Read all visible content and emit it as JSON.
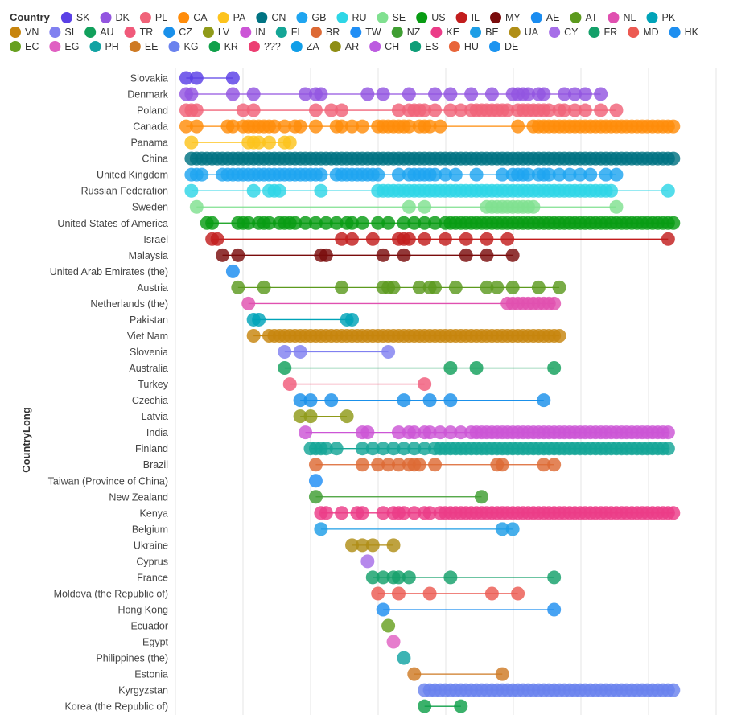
{
  "chart_data": {
    "type": "dot-range",
    "legend_title": "Country",
    "ylabel": "CountryLong",
    "xlabel": "",
    "xlim": [
      0,
      100
    ],
    "grid": true,
    "legend_position": "top",
    "legend": [
      {
        "code": "SK",
        "color": "#5a40e6"
      },
      {
        "code": "DK",
        "color": "#9355e0"
      },
      {
        "code": "PL",
        "color": "#f06379"
      },
      {
        "code": "CA",
        "color": "#ff8c0a"
      },
      {
        "code": "PA",
        "color": "#fdc31c"
      },
      {
        "code": "CN",
        "color": "#007382"
      },
      {
        "code": "GB",
        "color": "#1fa5f0"
      },
      {
        "code": "RU",
        "color": "#2ed6e6"
      },
      {
        "code": "SE",
        "color": "#80e090"
      },
      {
        "code": "US",
        "color": "#089c13"
      },
      {
        "code": "IL",
        "color": "#c21d1d"
      },
      {
        "code": "MY",
        "color": "#7a0c0c"
      },
      {
        "code": "AE",
        "color": "#1a8cf0"
      },
      {
        "code": "AT",
        "color": "#5c9a1e"
      },
      {
        "code": "NL",
        "color": "#e050b0"
      },
      {
        "code": "PK",
        "color": "#00a3b8"
      },
      {
        "code": "VN",
        "color": "#c7850e"
      },
      {
        "code": "SI",
        "color": "#8080f0"
      },
      {
        "code": "AU",
        "color": "#12a05c"
      },
      {
        "code": "TR",
        "color": "#f05a7a"
      },
      {
        "code": "CZ",
        "color": "#1a90ea"
      },
      {
        "code": "LV",
        "color": "#8f9a18"
      },
      {
        "code": "IN",
        "color": "#cc55d6"
      },
      {
        "code": "FI",
        "color": "#14a596"
      },
      {
        "code": "BR",
        "color": "#dd6a35"
      },
      {
        "code": "TW",
        "color": "#1f8ef5"
      },
      {
        "code": "NZ",
        "color": "#3f9e32"
      },
      {
        "code": "KE",
        "color": "#eb3c88"
      },
      {
        "code": "BE",
        "color": "#1e9ee6"
      },
      {
        "code": "UA",
        "color": "#b08e16"
      },
      {
        "code": "CY",
        "color": "#a66ee8"
      },
      {
        "code": "FR",
        "color": "#14a06a"
      },
      {
        "code": "MD",
        "color": "#ec5a52"
      },
      {
        "code": "HK",
        "color": "#1e8ff0"
      },
      {
        "code": "EC",
        "color": "#67a020"
      },
      {
        "code": "EG",
        "color": "#e060c2"
      },
      {
        "code": "PH",
        "color": "#12a3a3"
      },
      {
        "code": "EE",
        "color": "#ce7a24"
      },
      {
        "code": "KG",
        "color": "#6a82ee"
      },
      {
        "code": "KR",
        "color": "#10a04a"
      },
      {
        "code": "???",
        "color": "#ec3f72"
      },
      {
        "code": "ZA",
        "color": "#109ee8"
      },
      {
        "code": "AR",
        "color": "#8e8d14"
      },
      {
        "code": "CH",
        "color": "#bc5ce0"
      },
      {
        "code": "ES",
        "color": "#0e9e78"
      },
      {
        "code": "HU",
        "color": "#e8653a"
      },
      {
        "code": "DE",
        "color": "#1c94f0"
      }
    ],
    "series": [
      {
        "label": "Slovakia",
        "code": "SK",
        "x": [
          1,
          3,
          10
        ]
      },
      {
        "label": "Denmark",
        "code": "DK",
        "x": [
          1,
          2,
          10,
          14,
          24,
          26,
          27,
          36,
          39,
          44,
          49,
          52,
          56,
          60,
          64,
          65,
          66,
          67,
          69,
          70,
          74,
          76,
          78,
          81
        ]
      },
      {
        "label": "Poland",
        "code": "PL",
        "x": [
          1,
          2,
          3,
          12,
          14,
          26,
          29,
          31,
          42,
          44,
          45,
          46,
          47,
          49,
          52,
          54,
          56,
          57,
          58,
          59,
          60,
          61,
          62,
          63,
          65,
          66,
          67,
          68,
          69,
          70,
          71,
          73,
          74,
          76,
          78,
          81,
          84
        ]
      },
      {
        "label": "Canada",
        "code": "CA",
        "x": [
          1,
          3,
          9,
          10,
          12,
          13,
          14,
          15,
          16,
          17,
          18,
          20,
          22,
          23,
          26,
          30,
          31,
          33,
          35,
          38,
          39,
          40,
          41,
          42,
          43,
          44,
          46,
          47,
          48,
          50,
          65,
          68,
          69,
          70,
          71,
          72,
          73,
          74,
          75,
          76,
          77,
          78,
          79,
          80,
          81,
          82,
          83,
          84,
          85,
          86,
          87,
          88,
          89,
          90,
          91,
          92,
          93,
          94,
          95
        ]
      },
      {
        "label": "Panama",
        "code": "PA",
        "x": [
          2,
          13,
          14,
          15,
          17,
          20,
          21
        ]
      },
      {
        "label": "China",
        "code": "CN",
        "x": [
          2,
          3,
          4,
          5,
          6,
          7,
          8,
          9,
          10,
          11,
          12,
          13,
          14,
          15,
          16,
          17,
          18,
          19,
          20,
          21,
          22,
          23,
          24,
          25,
          26,
          27,
          28,
          29,
          30,
          31,
          32,
          33,
          34,
          35,
          36,
          37,
          38,
          39,
          40,
          41,
          42,
          43,
          44,
          45,
          46,
          47,
          48,
          49,
          50,
          51,
          52,
          53,
          54,
          55,
          56,
          57,
          58,
          59,
          60,
          61,
          62,
          63,
          64,
          65,
          66,
          67,
          68,
          69,
          70,
          71,
          72,
          73,
          74,
          75,
          76,
          77,
          78,
          79,
          80,
          81,
          82,
          83,
          84,
          85,
          86,
          87,
          88,
          89,
          90,
          91,
          92,
          93,
          94,
          95
        ]
      },
      {
        "label": "United Kingdom",
        "code": "GB",
        "x": [
          2,
          3,
          4,
          8,
          9,
          10,
          11,
          12,
          13,
          14,
          15,
          16,
          17,
          18,
          19,
          20,
          21,
          22,
          23,
          24,
          25,
          26,
          27,
          30,
          31,
          32,
          33,
          34,
          35,
          36,
          37,
          38,
          42,
          44,
          45,
          46,
          47,
          48,
          49,
          51,
          53,
          57,
          62,
          64,
          65,
          66,
          67,
          69,
          70,
          71,
          73,
          75,
          77,
          79,
          82,
          84
        ]
      },
      {
        "label": "Russian Federation",
        "code": "RU",
        "x": [
          2,
          14,
          17,
          18,
          19,
          27,
          38,
          39,
          40,
          41,
          42,
          43,
          44,
          45,
          46,
          47,
          48,
          49,
          50,
          51,
          52,
          53,
          54,
          55,
          56,
          57,
          58,
          59,
          60,
          61,
          62,
          63,
          64,
          65,
          66,
          67,
          68,
          69,
          70,
          71,
          72,
          73,
          74,
          75,
          76,
          77,
          78,
          79,
          80,
          81,
          82,
          83,
          94
        ]
      },
      {
        "label": "Sweden",
        "code": "SE",
        "x": [
          3,
          44,
          47,
          59,
          60,
          61,
          62,
          63,
          64,
          65,
          66,
          67,
          68,
          84
        ]
      },
      {
        "label": "United States of America",
        "code": "US",
        "x": [
          5,
          6,
          11,
          12,
          13,
          15,
          16,
          17,
          19,
          20,
          21,
          22,
          24,
          26,
          28,
          30,
          32,
          33,
          35,
          38,
          40,
          43,
          45,
          47,
          49,
          51,
          52,
          53,
          54,
          55,
          56,
          57,
          58,
          59,
          60,
          61,
          62,
          63,
          64,
          65,
          66,
          67,
          68,
          69,
          70,
          71,
          72,
          73,
          74,
          75,
          76,
          77,
          78,
          79,
          80,
          81,
          82,
          83,
          84,
          85,
          86,
          87,
          88,
          89,
          90,
          91,
          92,
          93,
          94,
          95
        ]
      },
      {
        "label": "Israel",
        "code": "IL",
        "x": [
          6,
          7,
          31,
          33,
          37,
          42,
          43,
          44,
          47,
          51,
          55,
          59,
          63,
          94
        ]
      },
      {
        "label": "Malaysia",
        "code": "MY",
        "x": [
          8,
          11,
          27,
          28,
          39,
          43,
          55,
          59,
          64
        ]
      },
      {
        "label": "United Arab Emirates (the)",
        "code": "AE",
        "x": [
          10
        ]
      },
      {
        "label": "Austria",
        "code": "AT",
        "x": [
          11,
          16,
          31,
          39,
          40,
          41,
          46,
          48,
          49,
          53,
          59,
          61,
          64,
          69,
          73
        ]
      },
      {
        "label": "Netherlands (the)",
        "code": "NL",
        "x": [
          13,
          63,
          64,
          65,
          66,
          67,
          68,
          69,
          70,
          71,
          72
        ]
      },
      {
        "label": "Pakistan",
        "code": "PK",
        "x": [
          14,
          15,
          32,
          33
        ]
      },
      {
        "label": "Viet Nam",
        "code": "VN",
        "x": [
          14,
          17,
          18,
          19,
          20,
          21,
          22,
          23,
          24,
          25,
          26,
          27,
          28,
          29,
          30,
          31,
          32,
          33,
          34,
          35,
          36,
          37,
          38,
          39,
          40,
          41,
          42,
          43,
          44,
          45,
          46,
          47,
          48,
          49,
          50,
          51,
          52,
          53,
          54,
          55,
          56,
          57,
          58,
          59,
          60,
          61,
          62,
          63,
          64,
          65,
          66,
          67,
          68,
          69,
          70,
          71,
          72,
          73
        ]
      },
      {
        "label": "Slovenia",
        "code": "SI",
        "x": [
          20,
          23,
          40
        ]
      },
      {
        "label": "Australia",
        "code": "AU",
        "x": [
          20,
          52,
          57,
          72
        ]
      },
      {
        "label": "Turkey",
        "code": "TR",
        "x": [
          21,
          47
        ]
      },
      {
        "label": "Czechia",
        "code": "CZ",
        "x": [
          23,
          25,
          29,
          43,
          48,
          52,
          70
        ]
      },
      {
        "label": "Latvia",
        "code": "LV",
        "x": [
          23,
          25,
          32
        ]
      },
      {
        "label": "India",
        "code": "IN",
        "x": [
          24,
          35,
          36,
          42,
          44,
          45,
          47,
          48,
          50,
          52,
          54,
          56,
          57,
          58,
          59,
          60,
          61,
          62,
          63,
          64,
          65,
          66,
          67,
          68,
          69,
          70,
          71,
          72,
          73,
          74,
          75,
          76,
          77,
          78,
          79,
          80,
          81,
          82,
          83,
          84,
          85,
          86,
          87,
          88,
          89,
          90,
          91,
          92,
          93,
          94
        ]
      },
      {
        "label": "Finland",
        "code": "FI",
        "x": [
          25,
          26,
          27,
          28,
          30,
          35,
          37,
          39,
          41,
          43,
          45,
          47,
          49,
          50,
          51,
          52,
          53,
          54,
          55,
          56,
          57,
          58,
          59,
          60,
          61,
          62,
          63,
          64,
          65,
          66,
          67,
          68,
          69,
          70,
          71,
          72,
          73,
          74,
          75,
          76,
          77,
          78,
          79,
          80,
          81,
          82,
          83,
          84,
          85,
          86,
          87,
          88,
          89,
          90,
          91,
          92,
          93,
          94
        ]
      },
      {
        "label": "Brazil",
        "code": "BR",
        "x": [
          26,
          35,
          38,
          40,
          42,
          44,
          45,
          46,
          49,
          61,
          62,
          70,
          72
        ]
      },
      {
        "label": "Taiwan (Province of China)",
        "code": "TW",
        "x": [
          26
        ]
      },
      {
        "label": "New Zealand",
        "code": "NZ",
        "x": [
          26,
          58
        ]
      },
      {
        "label": "Kenya",
        "code": "KE",
        "x": [
          27,
          28,
          31,
          34,
          35,
          39,
          41,
          42,
          43,
          45,
          47,
          48,
          50,
          51,
          52,
          53,
          54,
          55,
          56,
          57,
          58,
          59,
          60,
          61,
          62,
          63,
          64,
          65,
          66,
          67,
          68,
          69,
          70,
          71,
          72,
          73,
          74,
          75,
          76,
          77,
          78,
          79,
          80,
          81,
          82,
          83,
          84,
          85,
          86,
          87,
          88,
          89,
          90,
          91,
          92,
          93,
          94,
          95
        ]
      },
      {
        "label": "Belgium",
        "code": "BE",
        "x": [
          27,
          62,
          64
        ]
      },
      {
        "label": "Ukraine",
        "code": "UA",
        "x": [
          33,
          35,
          37,
          41
        ]
      },
      {
        "label": "Cyprus",
        "code": "CY",
        "x": [
          36
        ]
      },
      {
        "label": "France",
        "code": "FR",
        "x": [
          37,
          39,
          41,
          42,
          44,
          52,
          72
        ]
      },
      {
        "label": "Moldova (the Republic of)",
        "code": "MD",
        "x": [
          38,
          42,
          48,
          60,
          65
        ]
      },
      {
        "label": "Hong Kong",
        "code": "HK",
        "x": [
          39,
          72
        ]
      },
      {
        "label": "Ecuador",
        "code": "EC",
        "x": [
          40
        ]
      },
      {
        "label": "Egypt",
        "code": "EG",
        "x": [
          41
        ]
      },
      {
        "label": "Philippines (the)",
        "code": "PH",
        "x": [
          43
        ]
      },
      {
        "label": "Estonia",
        "code": "EE",
        "x": [
          45,
          62
        ]
      },
      {
        "label": "Kyrgyzstan",
        "code": "KG",
        "x": [
          47,
          48,
          49,
          50,
          51,
          52,
          53,
          54,
          55,
          56,
          57,
          58,
          59,
          60,
          61,
          62,
          63,
          64,
          65,
          66,
          67,
          68,
          69,
          70,
          71,
          72,
          73,
          74,
          75,
          76,
          77,
          78,
          79,
          80,
          81,
          82,
          83,
          84,
          85,
          86,
          87,
          88,
          89,
          90,
          91,
          92,
          93,
          94,
          95
        ]
      },
      {
        "label": "Korea (the Republic of)",
        "code": "KR",
        "x": [
          47,
          54
        ]
      }
    ]
  }
}
